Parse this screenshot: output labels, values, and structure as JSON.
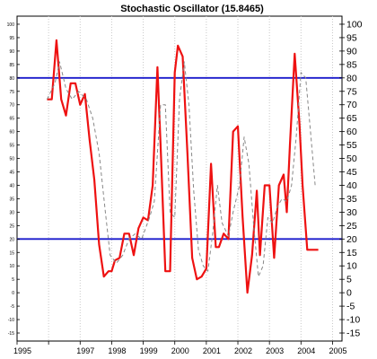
{
  "chart_data": {
    "type": "line",
    "title": "Stochastic Oscillator (15.8465)",
    "xlim": [
      1995.0,
      2005.3
    ],
    "ylim": [
      -18,
      103
    ],
    "yticks": [
      -15,
      -10,
      -5,
      0,
      5,
      10,
      15,
      20,
      25,
      30,
      35,
      40,
      45,
      50,
      55,
      60,
      65,
      70,
      75,
      80,
      85,
      90,
      95,
      100
    ],
    "xticks": [
      1995,
      1996,
      1997,
      1998,
      1999,
      2000,
      2001,
      2002,
      2003,
      2004,
      2005
    ],
    "xtick_labels": [
      "1995",
      "",
      "1997",
      "1998",
      "1999",
      "2000",
      "2001",
      "2002",
      "2003",
      "2004",
      "2005"
    ],
    "grid": {
      "vertical": true,
      "horizontal": false
    },
    "reference_lines": [
      80,
      20
    ],
    "series": [
      {
        "style": "solid",
        "color": "#ee1111",
        "x": [
          1995.95,
          1996.1,
          1996.25,
          1996.4,
          1996.55,
          1996.7,
          1996.85,
          1997.0,
          1997.15,
          1997.3,
          1997.45,
          1997.6,
          1997.75,
          1997.9,
          1998.0,
          1998.1,
          1998.25,
          1998.4,
          1998.55,
          1998.7,
          1998.85,
          1999.0,
          1999.15,
          1999.3,
          1999.45,
          1999.55,
          1999.7,
          1999.85,
          2000.0,
          2000.1,
          2000.25,
          2000.4,
          2000.55,
          2000.7,
          2000.85,
          2001.0,
          2001.15,
          2001.3,
          2001.4,
          2001.55,
          2001.7,
          2001.85,
          2002.0,
          2002.15,
          2002.3,
          2002.45,
          2002.6,
          2002.7,
          2002.85,
          2003.0,
          2003.15,
          2003.3,
          2003.45,
          2003.55,
          2003.65,
          2003.8,
          2003.95,
          2004.05,
          2004.2,
          2004.35,
          2004.45,
          2004.55
        ],
        "y": [
          72,
          72,
          94,
          72,
          66,
          78,
          78,
          70,
          74,
          57,
          42,
          18,
          6,
          8,
          8,
          12,
          13,
          22,
          22,
          14,
          24,
          28,
          27,
          40,
          84,
          55,
          8,
          8,
          82,
          92,
          88,
          52,
          13,
          5,
          6,
          9,
          48,
          17,
          17,
          22,
          20,
          60,
          62,
          28,
          0,
          14,
          38,
          14,
          40,
          40,
          13,
          40,
          44,
          30,
          55,
          89,
          63,
          40,
          16,
          16,
          16,
          16
        ],
        "values_note_visible": false
      },
      {
        "style": "dashed",
        "color": "#888888",
        "x": [
          1995.95,
          1996.2,
          1996.35,
          1996.55,
          1996.75,
          1996.95,
          1997.2,
          1997.4,
          1997.6,
          1997.8,
          1997.95,
          1998.15,
          1998.35,
          1998.55,
          1998.75,
          1998.95,
          1999.2,
          1999.35,
          1999.55,
          1999.7,
          1999.85,
          2000.0,
          2000.15,
          2000.3,
          2000.45,
          2000.6,
          2000.75,
          2000.9,
          2001.05,
          2001.2,
          2001.35,
          2001.5,
          2001.7,
          2001.85,
          2002.05,
          2002.2,
          2002.35,
          2002.5,
          2002.65,
          2002.8,
          2002.95,
          2003.1,
          2003.25,
          2003.4,
          2003.55,
          2003.7,
          2003.85,
          2004.0,
          2004.15,
          2004.3,
          2004.45
        ],
        "y": [
          72,
          78,
          86,
          76,
          72,
          75,
          72,
          65,
          52,
          30,
          14,
          11,
          14,
          20,
          22,
          20,
          28,
          34,
          70,
          70,
          30,
          28,
          72,
          86,
          70,
          38,
          16,
          10,
          8,
          22,
          40,
          26,
          21,
          30,
          40,
          58,
          48,
          25,
          6,
          10,
          28,
          26,
          32,
          35,
          34,
          40,
          58,
          82,
          80,
          60,
          40
        ]
      }
    ]
  }
}
